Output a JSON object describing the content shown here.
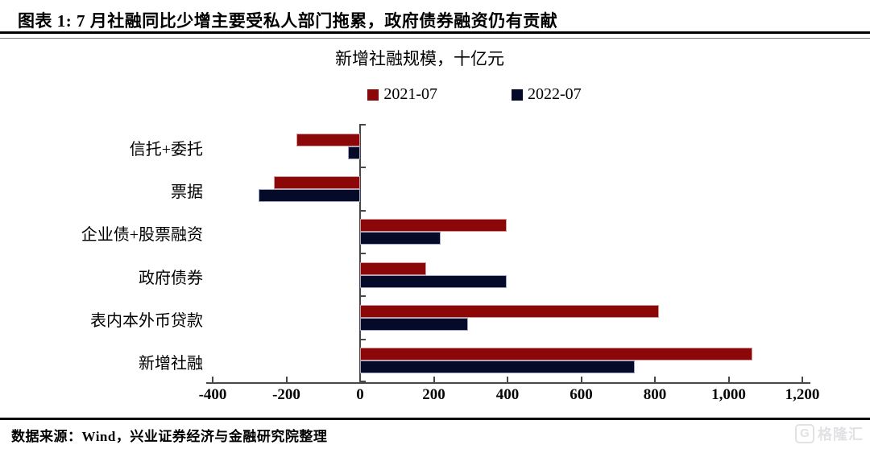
{
  "header": {
    "title": "图表 1: 7 月社融同比少增主要受私人部门拖累，政府债券融资仍有贡献"
  },
  "chart_data": {
    "type": "bar",
    "orientation": "horizontal",
    "title": "新增社融规模，十亿元",
    "categories": [
      "信托+委托",
      "票据",
      "企业债+股票融资",
      "政府债券",
      "表内本外币贷款",
      "新增社融"
    ],
    "series": [
      {
        "name": "2021-07",
        "color": "#8c0708",
        "values": [
          -172,
          -233,
          398,
          180,
          810,
          1065
        ]
      },
      {
        "name": "2022-07",
        "color": "#050a28",
        "values": [
          -32,
          -275,
          218,
          398,
          293,
          745
        ]
      }
    ],
    "xlim": [
      -400,
      1200
    ],
    "xticks": [
      -400,
      -200,
      0,
      200,
      400,
      600,
      800,
      1000,
      1200
    ],
    "xtick_labels": [
      "-400",
      "-200",
      "0",
      "200",
      "400",
      "600",
      "800",
      "1,000",
      "1,200"
    ],
    "legend_position": "top-center",
    "grid": false,
    "axis_color": "#474747"
  },
  "footer": {
    "source": "数据来源：Wind，兴业证券经济与金融研究院整理",
    "watermark": "格隆汇",
    "watermark_icon": "G"
  }
}
